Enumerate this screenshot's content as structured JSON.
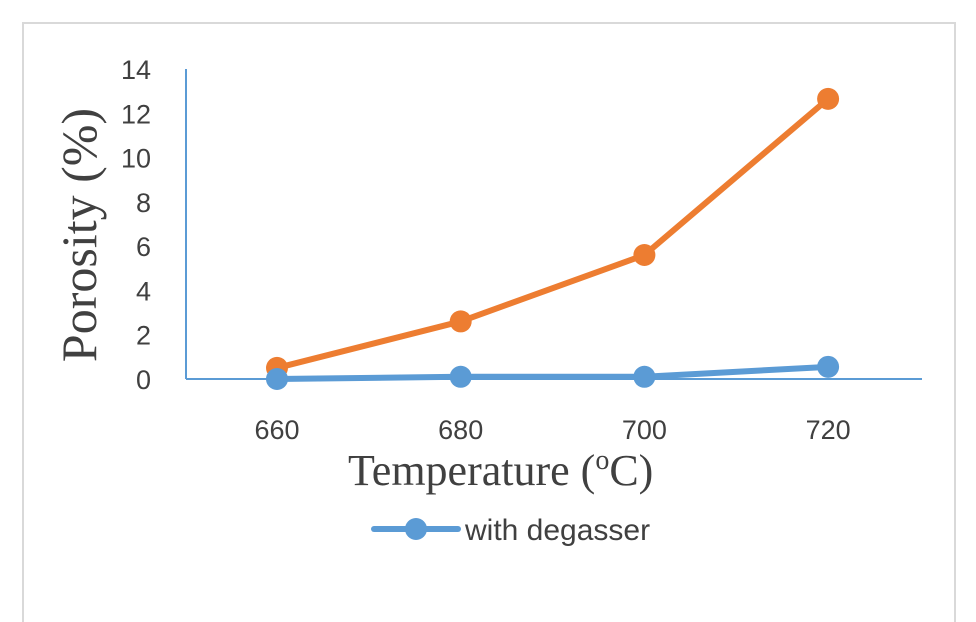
{
  "chart_data": {
    "type": "line",
    "title": "",
    "x": [
      660,
      680,
      700,
      720
    ],
    "x_tick_labels": [
      "660",
      "680",
      "700",
      "720"
    ],
    "xlabel": {
      "text": "Temperature (",
      "superscript": "o",
      "text_after": "C)"
    },
    "ylabel": "Porosity (%)",
    "ylim": [
      0,
      14
    ],
    "y_ticks": [
      0,
      2,
      4,
      6,
      8,
      10,
      12,
      14
    ],
    "grid": false,
    "legend_position": "bottom",
    "series": [
      {
        "name": "with degasser",
        "color": "#5b9bd5",
        "values": [
          0.0,
          0.1,
          0.1,
          0.55
        ],
        "in_legend": true
      },
      {
        "name": "",
        "color": "#ed7d31",
        "values": [
          0.5,
          2.6,
          5.6,
          12.65
        ],
        "in_legend": false
      }
    ],
    "axis_color": "#5b9bd5"
  }
}
